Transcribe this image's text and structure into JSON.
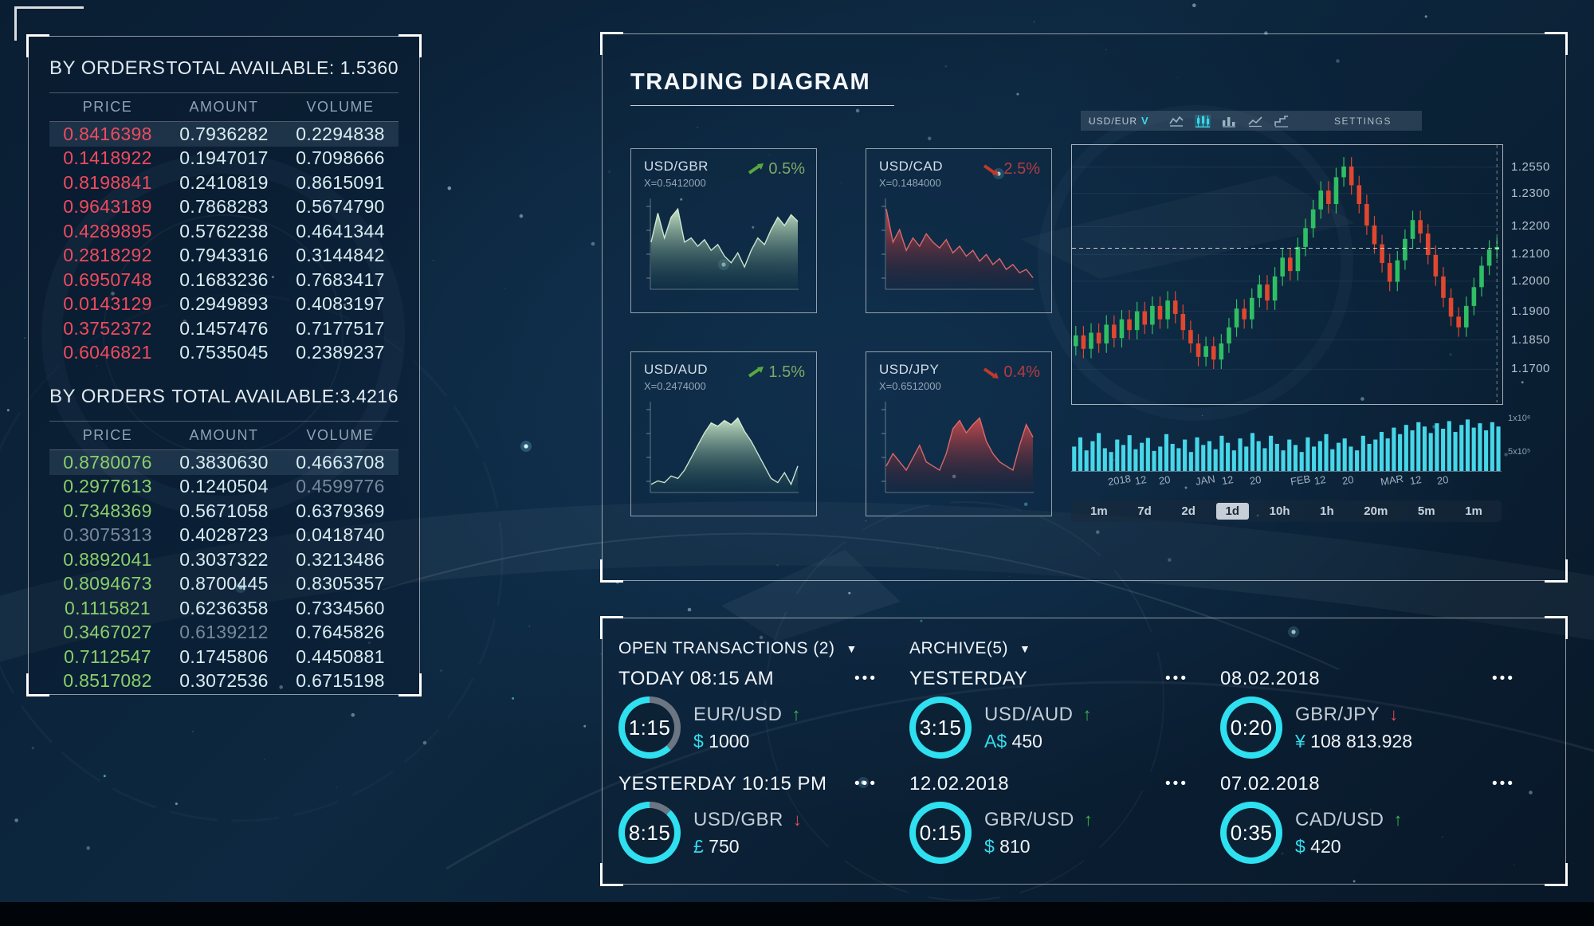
{
  "colors": {
    "background": "#0d2840",
    "accent_cyan": "#35dcec",
    "price_down_red": "#ef4b5d",
    "price_up_green": "#8ace6a",
    "candle_up": "#2fbf63",
    "candle_down": "#e0472f",
    "volume_bar": "#46d7e8",
    "ring_cyan": "#2ee0f0",
    "ring_gray": "#6b7682",
    "arrow_up": "#3cb54a",
    "arrow_down": "#e84a55"
  },
  "left_panel": {
    "sections": [
      {
        "title": "BY ORDERS",
        "total_label": "TOTAL AVAILABLE: 1.5360",
        "columns": [
          "PRICE",
          "AMOUNT",
          "VOLUME"
        ],
        "price_color": "#ef4b5d",
        "dim_cells": [],
        "rows": [
          [
            "0.8416398",
            "0.7936282",
            "0.2294838"
          ],
          [
            "0.1418922",
            "0.1947017",
            "0.7098666"
          ],
          [
            "0.8198841",
            "0.2410819",
            "0.8615091"
          ],
          [
            "0.9643189",
            "0.7868283",
            "0.5674790"
          ],
          [
            "0.4289895",
            "0.5762238",
            "0.4641344"
          ],
          [
            "0.2818292",
            "0.7943316",
            "0.3144842"
          ],
          [
            "0.6950748",
            "0.1683236",
            "0.7683417"
          ],
          [
            "0.0143129",
            "0.2949893",
            "0.4083197"
          ],
          [
            "0.3752372",
            "0.1457476",
            "0.7177517"
          ],
          [
            "0.6046821",
            "0.7535045",
            "0.2389237"
          ]
        ]
      },
      {
        "title": "BY ORDERS",
        "total_label": "TOTAL AVAILABLE:3.4216",
        "columns": [
          "PRICE",
          "AMOUNT",
          "VOLUME"
        ],
        "price_color": "#8ace6a",
        "dim_cells": [
          [
            1,
            2
          ],
          [
            3,
            0
          ],
          [
            7,
            1
          ]
        ],
        "rows": [
          [
            "0.8780076",
            "0.3830630",
            "0.4663708"
          ],
          [
            "0.2977613",
            "0.1240504",
            "0.4599776"
          ],
          [
            "0.7348369",
            "0.5671058",
            "0.6379369"
          ],
          [
            "0.3075313",
            "0.4028723",
            "0.0418740"
          ],
          [
            "0.8892041",
            "0.3037322",
            "0.3213486"
          ],
          [
            "0.8094673",
            "0.8700445",
            "0.8305357"
          ],
          [
            "0.1115821",
            "0.6236358",
            "0.7334560"
          ],
          [
            "0.3467027",
            "0.6139212",
            "0.7645826"
          ],
          [
            "0.7112547",
            "0.1745806",
            "0.4450881"
          ],
          [
            "0.8517082",
            "0.3072536",
            "0.6715198"
          ]
        ]
      }
    ]
  },
  "trading_panel": {
    "title": "TRADING DIAGRAM",
    "toolbar": {
      "pair_selector": "USD/EUR",
      "dropdown_caret": "V",
      "settings_label": "SETTINGS",
      "icons": [
        "line-chart-icon",
        "candlestick-chart-icon",
        "bar-chart-icon",
        "area-line-chart-icon",
        "step-chart-icon"
      ],
      "active_icon": "candlestick-chart-icon"
    },
    "time_ranges": [
      "1m",
      "7d",
      "2d",
      "1d",
      "10h",
      "1h",
      "20m",
      "5m",
      "1m"
    ],
    "active_range_index": 3,
    "active_range": "1d"
  },
  "transactions_panel": {
    "open_header": "OPEN TRANSACTIONS (2)",
    "archive_header": "ARCHIVE(5)",
    "caret": "▼",
    "more_label": "•••",
    "transactions": [
      {
        "group": "open",
        "date_label": "TODAY 08:15 AM",
        "timer": "1:15",
        "pair": "EUR/USD",
        "direction": "up",
        "currency_symbol": "$",
        "amount": "1000",
        "progress": 0.62
      },
      {
        "group": "open",
        "date_label": "YESTERDAY 10:15 PM",
        "timer": "8:15",
        "pair": "USD/GBR",
        "direction": "down",
        "currency_symbol": "£",
        "amount": "750",
        "progress": 0.88
      },
      {
        "group": "archive",
        "date_label": "YESTERDAY",
        "timer": "3:15",
        "pair": "USD/AUD",
        "direction": "up",
        "currency_symbol": "A$",
        "amount": "450",
        "progress": 1
      },
      {
        "group": "archive",
        "date_label": "12.02.2018",
        "timer": "0:15",
        "pair": "GBR/USD",
        "direction": "up",
        "currency_symbol": "$",
        "amount": "810",
        "progress": 1
      },
      {
        "group": "archive",
        "date_label": "08.02.2018",
        "timer": "0:20",
        "pair": "GBR/JPY",
        "direction": "down",
        "currency_symbol": "¥",
        "amount": "108 813.928",
        "progress": 1
      },
      {
        "group": "archive",
        "date_label": "07.02.2018",
        "timer": "0:35",
        "pair": "CAD/USD",
        "direction": "up",
        "currency_symbol": "$",
        "amount": "420",
        "progress": 1
      }
    ]
  },
  "chart_data": [
    {
      "type": "area",
      "name": "mini-usd-gbr",
      "title": "USD/GBR",
      "x_label": "X=0.5412000",
      "change": "0.5%",
      "direction": "up",
      "palette": "green",
      "values": [
        0.55,
        0.9,
        0.6,
        0.85,
        0.95,
        0.55,
        0.6,
        0.5,
        0.58,
        0.45,
        0.52,
        0.38,
        0.3,
        0.42,
        0.25,
        0.45,
        0.6,
        0.52,
        0.7,
        0.85,
        0.75,
        0.88,
        0.8
      ]
    },
    {
      "type": "area",
      "name": "mini-usd-cad",
      "title": "USD/CAD",
      "x_label": "X=0.1484000",
      "change": "2.5%",
      "direction": "down",
      "palette": "red",
      "values": [
        0.95,
        0.55,
        0.7,
        0.45,
        0.6,
        0.5,
        0.65,
        0.55,
        0.48,
        0.58,
        0.42,
        0.5,
        0.38,
        0.45,
        0.32,
        0.4,
        0.28,
        0.35,
        0.22,
        0.28,
        0.18,
        0.22,
        0.12
      ]
    },
    {
      "type": "area",
      "name": "mini-usd-aud",
      "title": "USD/AUD",
      "x_label": "X=0.2474000",
      "change": "1.5%",
      "direction": "up",
      "palette": "green",
      "values": [
        0.08,
        0.12,
        0.1,
        0.18,
        0.15,
        0.25,
        0.4,
        0.55,
        0.7,
        0.82,
        0.78,
        0.85,
        0.8,
        0.88,
        0.72,
        0.6,
        0.45,
        0.3,
        0.15,
        0.1,
        0.22,
        0.08,
        0.3
      ]
    },
    {
      "type": "area",
      "name": "mini-usd-jpy",
      "title": "USD/JPY",
      "x_label": "X=0.6512000",
      "change": "0.4%",
      "direction": "down",
      "palette": "red",
      "values": [
        0.3,
        0.45,
        0.35,
        0.25,
        0.4,
        0.55,
        0.35,
        0.3,
        0.25,
        0.45,
        0.75,
        0.85,
        0.7,
        0.8,
        0.88,
        0.6,
        0.45,
        0.35,
        0.3,
        0.25,
        0.55,
        0.8,
        0.65
      ]
    },
    {
      "type": "candlestick",
      "name": "main-usd-eur",
      "pair": "USD/EUR",
      "y_ticks": [
        "1.2550",
        "1.2300",
        "1.2200",
        "1.2100",
        "1.2000",
        "1.1900",
        "1.1850",
        "1.1700"
      ],
      "x_ticks": [
        "2018",
        "12",
        "20",
        "JAN",
        "12",
        "20",
        "FEB",
        "12",
        "20",
        "MAR",
        "12",
        "20"
      ],
      "price_min": 1.168,
      "price_max": 1.264,
      "last_price_line": 1.2255,
      "closes": [
        1.193,
        1.188,
        1.194,
        1.19,
        1.197,
        1.192,
        1.199,
        1.195,
        1.202,
        1.197,
        1.204,
        1.199,
        1.206,
        1.201,
        1.195,
        1.19,
        1.185,
        1.189,
        1.184,
        1.19,
        1.196,
        1.203,
        1.199,
        1.207,
        1.212,
        1.206,
        1.215,
        1.222,
        1.217,
        1.226,
        1.233,
        1.24,
        1.247,
        1.242,
        1.252,
        1.256,
        1.249,
        1.242,
        1.234,
        1.227,
        1.22,
        1.213,
        1.221,
        1.229,
        1.236,
        1.231,
        1.223,
        1.215,
        1.207,
        1.2,
        1.196,
        1.204,
        1.211,
        1.219,
        1.225,
        1.226
      ]
    },
    {
      "type": "bar",
      "name": "volume",
      "y_ticks": [
        "1x10⁶",
        "5x10⁵"
      ],
      "values": [
        0.45,
        0.62,
        0.38,
        0.55,
        0.7,
        0.42,
        0.35,
        0.58,
        0.48,
        0.66,
        0.4,
        0.52,
        0.61,
        0.37,
        0.45,
        0.68,
        0.5,
        0.42,
        0.58,
        0.35,
        0.62,
        0.48,
        0.55,
        0.4,
        0.65,
        0.52,
        0.38,
        0.6,
        0.45,
        0.7,
        0.55,
        0.42,
        0.65,
        0.5,
        0.38,
        0.58,
        0.48,
        0.35,
        0.62,
        0.45,
        0.55,
        0.68,
        0.4,
        0.52,
        0.6,
        0.45,
        0.38,
        0.65,
        0.5,
        0.58,
        0.72,
        0.6,
        0.8,
        0.68,
        0.85,
        0.75,
        0.9,
        0.82,
        0.7,
        0.88,
        0.78,
        0.92,
        0.72,
        0.85,
        0.95,
        0.8,
        0.88,
        0.75,
        0.9,
        0.82
      ]
    }
  ]
}
